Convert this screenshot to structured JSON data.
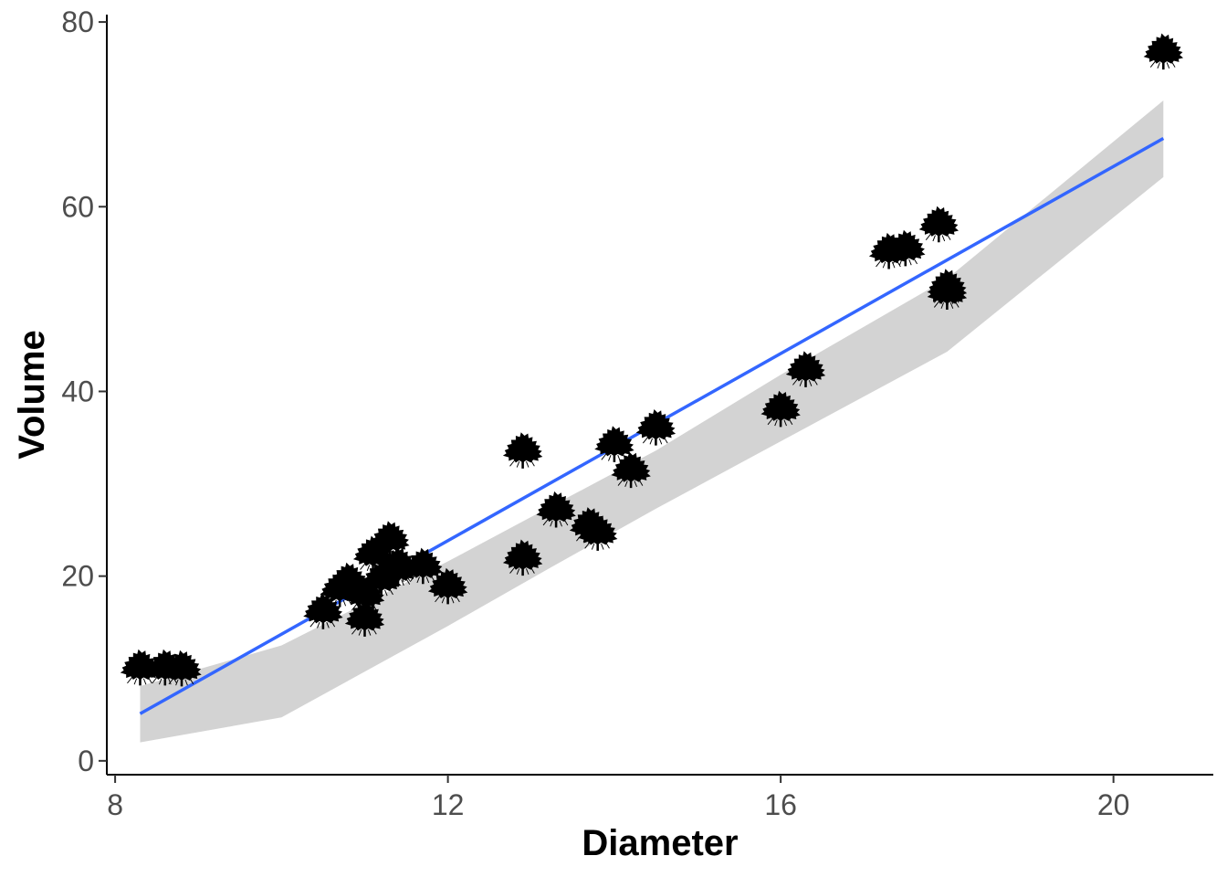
{
  "chart_data": {
    "type": "scatter",
    "title": "",
    "xlabel": "Diameter",
    "ylabel": "Volume",
    "xlim": [
      7.9,
      21.2
    ],
    "ylim": [
      -1.5,
      80.8
    ],
    "x_ticks": [
      8,
      12,
      16,
      20
    ],
    "x_tick_labels": [
      "8",
      "12",
      "16",
      "20"
    ],
    "y_ticks": [
      0,
      20,
      40,
      60,
      80
    ],
    "y_tick_labels": [
      "0",
      "20",
      "40",
      "60",
      "80"
    ],
    "grid": false,
    "marker": "tree-icon",
    "points": [
      {
        "x": 8.3,
        "y": 10.3
      },
      {
        "x": 8.6,
        "y": 10.3
      },
      {
        "x": 8.8,
        "y": 10.2
      },
      {
        "x": 10.5,
        "y": 16.4
      },
      {
        "x": 10.7,
        "y": 18.8
      },
      {
        "x": 10.8,
        "y": 19.7
      },
      {
        "x": 11.0,
        "y": 15.6
      },
      {
        "x": 11.0,
        "y": 18.2
      },
      {
        "x": 11.1,
        "y": 22.6
      },
      {
        "x": 11.2,
        "y": 19.9
      },
      {
        "x": 11.3,
        "y": 24.2
      },
      {
        "x": 11.4,
        "y": 21.0
      },
      {
        "x": 11.4,
        "y": 21.4
      },
      {
        "x": 11.7,
        "y": 21.3
      },
      {
        "x": 12.0,
        "y": 19.1
      },
      {
        "x": 12.9,
        "y": 22.2
      },
      {
        "x": 12.9,
        "y": 33.8
      },
      {
        "x": 13.3,
        "y": 27.4
      },
      {
        "x": 13.7,
        "y": 25.7
      },
      {
        "x": 13.8,
        "y": 24.9
      },
      {
        "x": 14.0,
        "y": 34.5
      },
      {
        "x": 14.2,
        "y": 31.7
      },
      {
        "x": 14.5,
        "y": 36.3
      },
      {
        "x": 16.0,
        "y": 38.3
      },
      {
        "x": 16.3,
        "y": 42.6
      },
      {
        "x": 17.3,
        "y": 55.4
      },
      {
        "x": 17.5,
        "y": 55.7
      },
      {
        "x": 17.9,
        "y": 58.3
      },
      {
        "x": 18.0,
        "y": 51.5
      },
      {
        "x": 18.0,
        "y": 51.0
      },
      {
        "x": 20.6,
        "y": 77.0
      }
    ],
    "series": [
      {
        "name": "linear fit",
        "type": "line",
        "color": "#3366FF",
        "x": [
          8.3,
          20.6
        ],
        "y": [
          5.1,
          67.4
        ]
      }
    ],
    "confidence_band": {
      "color": "#d3d3d3",
      "x": [
        8.3,
        10,
        12,
        13.25,
        14.5,
        16,
        18,
        20.6
      ],
      "lower": [
        2.0,
        4.7,
        14.6,
        21.0,
        27.3,
        34.6,
        44.3,
        63.2
      ],
      "upper": [
        8.1,
        12.5,
        21.6,
        27.6,
        33.6,
        41.8,
        52.2,
        71.5
      ]
    }
  }
}
